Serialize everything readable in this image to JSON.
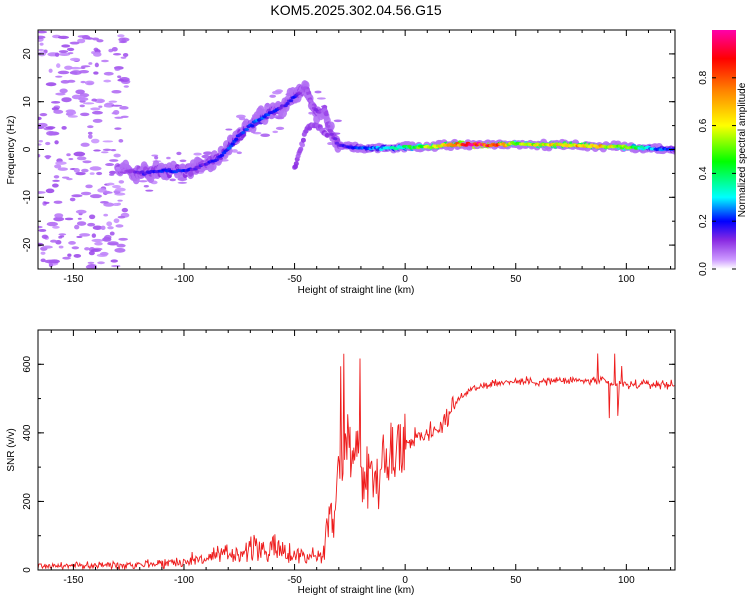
{
  "title": "KOM5.2025.302.04.56.G15",
  "chart_data": [
    {
      "type": "heatmap",
      "name": "spectrogram",
      "xlabel": "Height of straight line (km)",
      "ylabel": "Frequency (Hz)",
      "xlim": [
        -166,
        122
      ],
      "ylim": [
        -25,
        25
      ],
      "xticks": [
        -150,
        -100,
        -50,
        0,
        50,
        100
      ],
      "xtick_labels": [
        "-150",
        "-100",
        "-50",
        "0",
        "50",
        "100"
      ],
      "yticks": [
        -20,
        -10,
        0,
        10,
        20
      ],
      "ytick_labels": [
        "-20",
        "-10",
        "0",
        "10",
        "20"
      ],
      "colorbar": {
        "label": "Normalized spectral amplitude",
        "range": [
          0,
          1
        ],
        "ticks": [
          0,
          0.2,
          0.4,
          0.6,
          0.8
        ],
        "tick_labels": [
          "0.0",
          "0.2",
          "0.4",
          "0.6",
          "0.8"
        ]
      },
      "ridge": {
        "x": [
          -130,
          -120,
          -110,
          -100,
          -95,
          -90,
          -85,
          -80,
          -75,
          -70,
          -65,
          -60,
          -55,
          -50,
          -47,
          -45,
          -42,
          -40,
          -38,
          -36,
          -35,
          -33,
          -30,
          -25,
          -20,
          -10,
          0,
          10,
          20,
          30,
          40,
          50,
          60,
          70,
          80,
          90,
          100,
          110,
          120
        ],
        "y": [
          -4,
          -5,
          -4.5,
          -4.5,
          -4,
          -3,
          -2,
          0,
          3,
          5,
          6.5,
          8,
          9,
          11,
          12,
          13,
          9,
          8,
          8,
          8.5,
          5,
          3,
          1,
          0.5,
          0.3,
          0.3,
          0.5,
          0.5,
          1,
          1,
          1,
          1.2,
          1,
          1,
          0.8,
          0.7,
          0.5,
          0.3,
          0
        ],
        "amplitude": [
          0.05,
          0.15,
          0.2,
          0.2,
          0.15,
          0.15,
          0.2,
          0.22,
          0.2,
          0.22,
          0.25,
          0.2,
          0.15,
          0.18,
          0.1,
          0.08,
          0.08,
          0.12,
          0.1,
          0.08,
          0.1,
          0.12,
          0.15,
          0.18,
          0.22,
          0.28,
          0.4,
          0.55,
          0.7,
          0.95,
          0.85,
          0.5,
          0.6,
          0.65,
          0.7,
          0.65,
          0.5,
          0.3,
          0.2
        ]
      },
      "branch": {
        "x": [
          -50,
          -48,
          -46,
          -45,
          -43,
          -40,
          -38,
          -35
        ],
        "y": [
          -4,
          -1,
          2,
          4,
          5,
          5,
          4,
          3
        ],
        "amplitude": [
          0.05,
          0.05,
          0.05,
          0.05,
          0.05,
          0.05,
          0.05,
          0.05
        ]
      }
    },
    {
      "type": "line",
      "name": "snr",
      "xlabel": "Height of straight line (km)",
      "ylabel": "SNR (v/v)",
      "xlim": [
        -166,
        122
      ],
      "ylim": [
        0,
        700
      ],
      "xticks": [
        -150,
        -100,
        -50,
        0,
        50,
        100
      ],
      "xtick_labels": [
        "-150",
        "-100",
        "-50",
        "0",
        "50",
        "100"
      ],
      "yticks": [
        0,
        200,
        400,
        600
      ],
      "ytick_labels": [
        "0",
        "200",
        "400",
        "600"
      ],
      "color": "#ee1c1c",
      "series": [
        {
          "name": "SNR",
          "x": [
            -166,
            -150,
            -130,
            -120,
            -110,
            -100,
            -90,
            -80,
            -70,
            -60,
            -50,
            -40,
            -37,
            -35,
            -30,
            -25,
            -20,
            -15,
            -10,
            -5,
            0,
            5,
            10,
            15,
            20,
            25,
            30,
            40,
            50,
            60,
            70,
            80,
            90,
            93,
            100,
            110,
            122
          ],
          "values": [
            12,
            12,
            15,
            18,
            20,
            25,
            35,
            45,
            60,
            60,
            45,
            40,
            40,
            120,
            280,
            400,
            300,
            280,
            310,
            330,
            370,
            390,
            400,
            410,
            460,
            500,
            530,
            545,
            550,
            550,
            552,
            552,
            550,
            540,
            540,
            542,
            540
          ]
        }
      ]
    }
  ]
}
